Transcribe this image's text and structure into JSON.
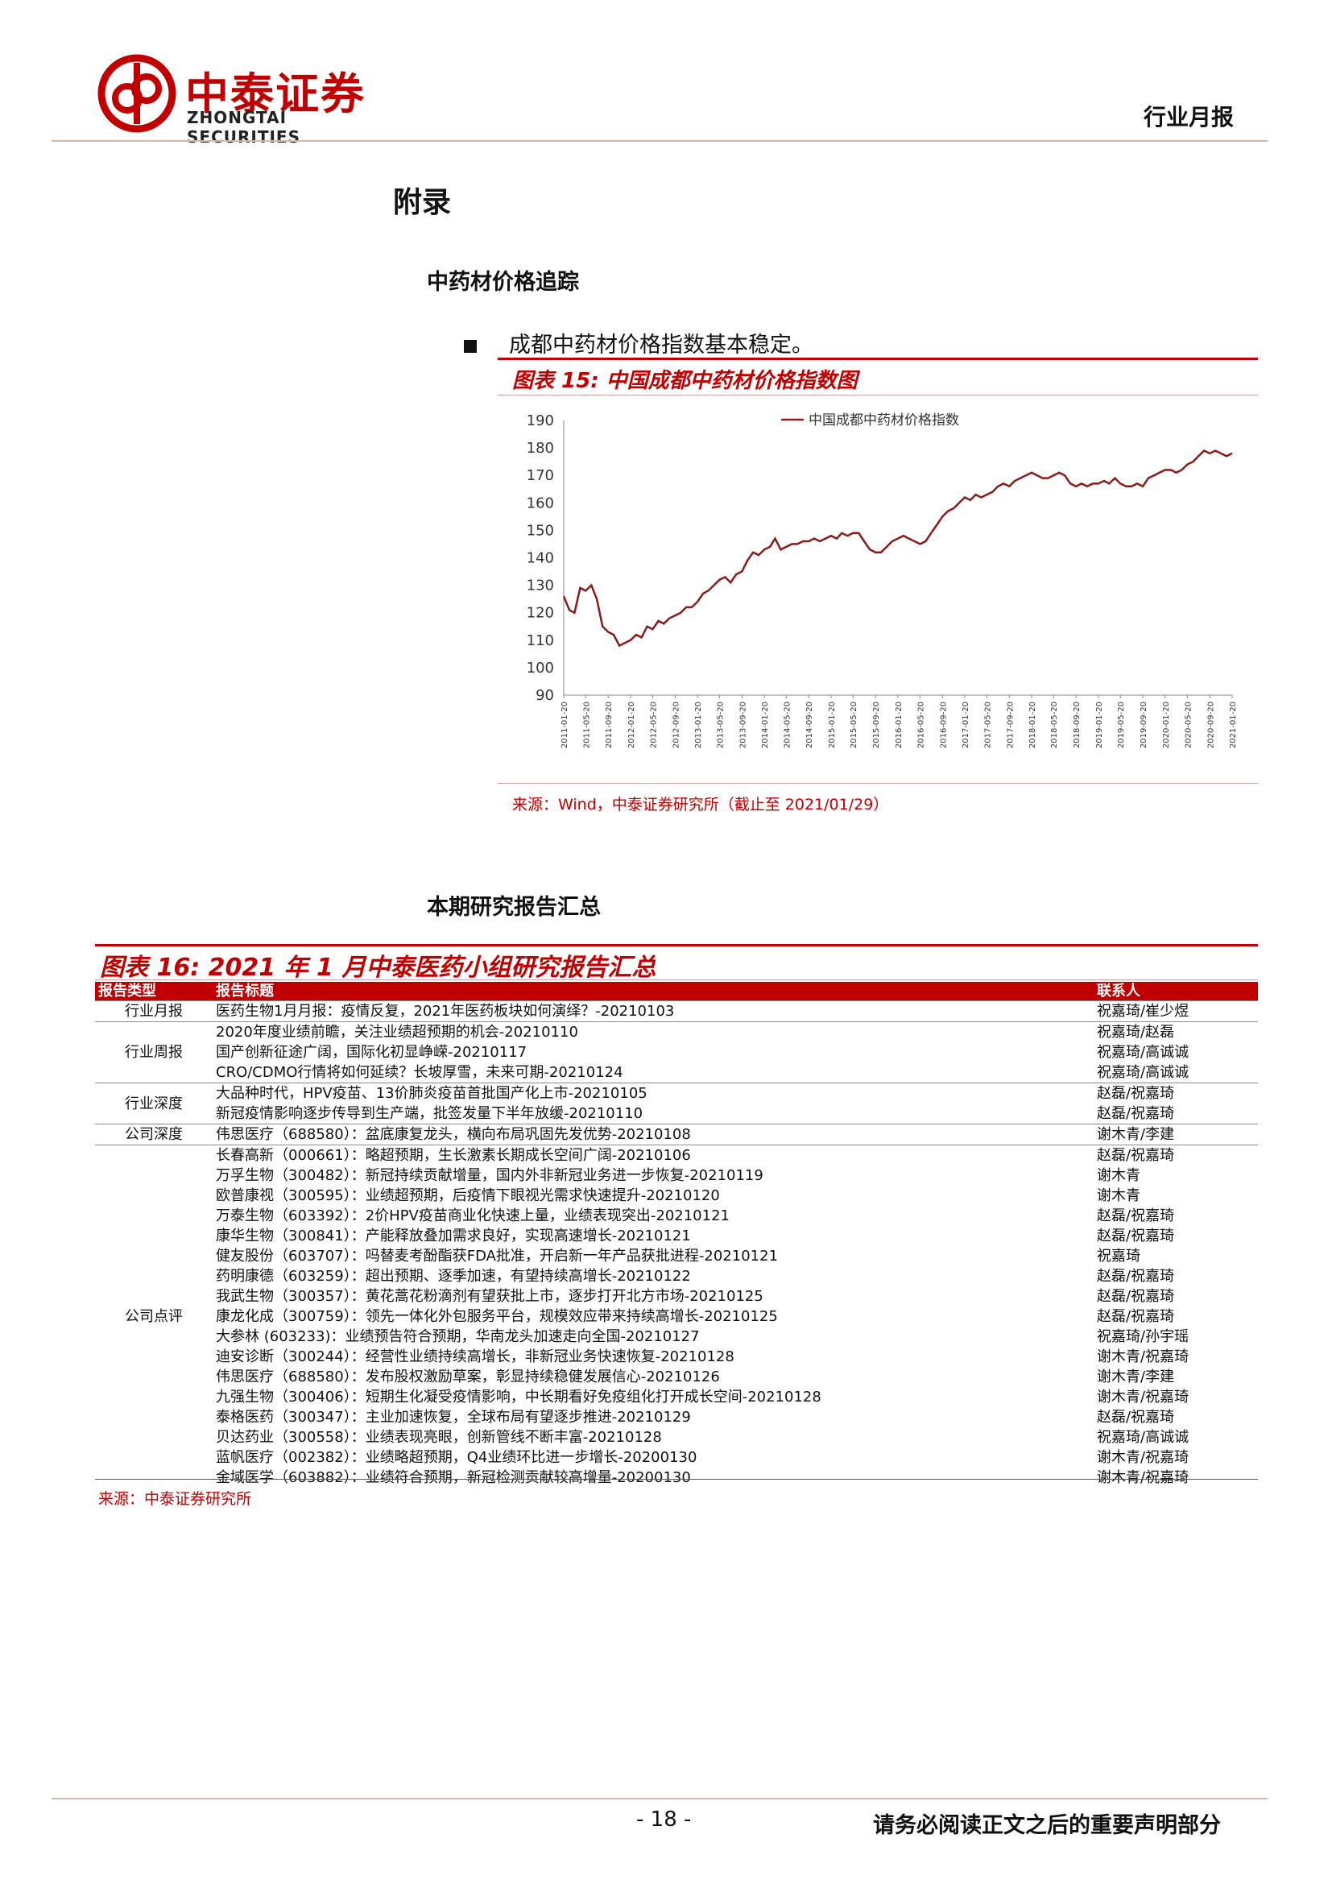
{
  "header": {
    "logo_cn": "中泰证券",
    "logo_en": "ZHONGTAI SECURITIES",
    "doc_type": "行业月报"
  },
  "appendix_title": "附录",
  "section1_title": "中药材价格追踪",
  "bullet_text": "成都中药材价格指数基本稳定。",
  "figure15": {
    "title": "图表 15:  中国成都中药材价格指数图",
    "source": "来源：Wind，中泰证券研究所（截止至 2021/01/29）"
  },
  "chart_data": {
    "type": "line",
    "title": "",
    "xlabel": "",
    "ylabel": "",
    "ylim": [
      90,
      190
    ],
    "yticks": [
      90,
      100,
      110,
      120,
      130,
      140,
      150,
      160,
      170,
      180,
      190
    ],
    "legend_position": "top",
    "grid": false,
    "x_ticks": [
      "2011-01-20",
      "2011-05-20",
      "2011-09-20",
      "2012-01-20",
      "2012-05-20",
      "2012-09-20",
      "2013-01-20",
      "2013-05-20",
      "2013-09-20",
      "2014-01-20",
      "2014-05-20",
      "2014-09-20",
      "2015-01-20",
      "2015-05-20",
      "2015-09-20",
      "2016-01-20",
      "2016-05-20",
      "2016-09-20",
      "2017-01-20",
      "2017-05-20",
      "2017-09-20",
      "2018-01-20",
      "2018-05-20",
      "2018-09-20",
      "2019-01-20",
      "2019-05-20",
      "2019-09-20",
      "2020-01-20",
      "2020-05-20",
      "2020-09-20",
      "2021-01-20"
    ],
    "series": [
      {
        "name": "中国成都中药材价格指数",
        "color": "#8b1a1a",
        "points": [
          [
            "2011-01-20",
            126
          ],
          [
            "2011-02-20",
            121
          ],
          [
            "2011-03-20",
            120
          ],
          [
            "2011-04-20",
            129
          ],
          [
            "2011-05-20",
            128
          ],
          [
            "2011-06-20",
            130
          ],
          [
            "2011-07-20",
            125
          ],
          [
            "2011-08-20",
            115
          ],
          [
            "2011-09-20",
            113
          ],
          [
            "2011-10-20",
            112
          ],
          [
            "2011-11-20",
            108
          ],
          [
            "2011-12-20",
            109
          ],
          [
            "2012-01-20",
            110
          ],
          [
            "2012-02-20",
            112
          ],
          [
            "2012-03-20",
            111
          ],
          [
            "2012-04-20",
            115
          ],
          [
            "2012-05-20",
            114
          ],
          [
            "2012-06-20",
            117
          ],
          [
            "2012-07-20",
            116
          ],
          [
            "2012-08-20",
            118
          ],
          [
            "2012-09-20",
            119
          ],
          [
            "2012-10-20",
            120
          ],
          [
            "2012-11-20",
            122
          ],
          [
            "2012-12-20",
            122
          ],
          [
            "2013-01-20",
            124
          ],
          [
            "2013-02-20",
            127
          ],
          [
            "2013-03-20",
            128
          ],
          [
            "2013-04-20",
            130
          ],
          [
            "2013-05-20",
            132
          ],
          [
            "2013-06-20",
            133
          ],
          [
            "2013-07-20",
            131
          ],
          [
            "2013-08-20",
            134
          ],
          [
            "2013-09-20",
            135
          ],
          [
            "2013-10-20",
            139
          ],
          [
            "2013-11-20",
            142
          ],
          [
            "2013-12-20",
            141
          ],
          [
            "2014-01-20",
            143
          ],
          [
            "2014-02-20",
            144
          ],
          [
            "2014-03-20",
            147
          ],
          [
            "2014-04-20",
            143
          ],
          [
            "2014-05-20",
            144
          ],
          [
            "2014-06-20",
            145
          ],
          [
            "2014-07-20",
            145
          ],
          [
            "2014-08-20",
            146
          ],
          [
            "2014-09-20",
            146
          ],
          [
            "2014-10-20",
            147
          ],
          [
            "2014-11-20",
            146
          ],
          [
            "2014-12-20",
            147
          ],
          [
            "2015-01-20",
            148
          ],
          [
            "2015-02-20",
            147
          ],
          [
            "2015-03-20",
            149
          ],
          [
            "2015-04-20",
            148
          ],
          [
            "2015-05-20",
            149
          ],
          [
            "2015-06-20",
            149
          ],
          [
            "2015-07-20",
            146
          ],
          [
            "2015-08-20",
            143
          ],
          [
            "2015-09-20",
            142
          ],
          [
            "2015-10-20",
            142
          ],
          [
            "2015-11-20",
            144
          ],
          [
            "2015-12-20",
            146
          ],
          [
            "2016-01-20",
            147
          ],
          [
            "2016-02-20",
            148
          ],
          [
            "2016-03-20",
            147
          ],
          [
            "2016-04-20",
            146
          ],
          [
            "2016-05-20",
            145
          ],
          [
            "2016-06-20",
            146
          ],
          [
            "2016-07-20",
            149
          ],
          [
            "2016-08-20",
            152
          ],
          [
            "2016-09-20",
            155
          ],
          [
            "2016-10-20",
            157
          ],
          [
            "2016-11-20",
            158
          ],
          [
            "2016-12-20",
            160
          ],
          [
            "2017-01-20",
            162
          ],
          [
            "2017-02-20",
            161
          ],
          [
            "2017-03-20",
            163
          ],
          [
            "2017-04-20",
            162
          ],
          [
            "2017-05-20",
            163
          ],
          [
            "2017-06-20",
            164
          ],
          [
            "2017-07-20",
            166
          ],
          [
            "2017-08-20",
            167
          ],
          [
            "2017-09-20",
            166
          ],
          [
            "2017-10-20",
            168
          ],
          [
            "2017-11-20",
            169
          ],
          [
            "2017-12-20",
            170
          ],
          [
            "2018-01-20",
            171
          ],
          [
            "2018-02-20",
            170
          ],
          [
            "2018-03-20",
            169
          ],
          [
            "2018-04-20",
            169
          ],
          [
            "2018-05-20",
            170
          ],
          [
            "2018-06-20",
            171
          ],
          [
            "2018-07-20",
            170
          ],
          [
            "2018-08-20",
            167
          ],
          [
            "2018-09-20",
            166
          ],
          [
            "2018-10-20",
            167
          ],
          [
            "2018-11-20",
            166
          ],
          [
            "2018-12-20",
            167
          ],
          [
            "2019-01-20",
            167
          ],
          [
            "2019-02-20",
            168
          ],
          [
            "2019-03-20",
            167
          ],
          [
            "2019-04-20",
            169
          ],
          [
            "2019-05-20",
            167
          ],
          [
            "2019-06-20",
            166
          ],
          [
            "2019-07-20",
            166
          ],
          [
            "2019-08-20",
            167
          ],
          [
            "2019-09-20",
            166
          ],
          [
            "2019-10-20",
            169
          ],
          [
            "2019-11-20",
            170
          ],
          [
            "2019-12-20",
            171
          ],
          [
            "2020-01-20",
            172
          ],
          [
            "2020-02-20",
            172
          ],
          [
            "2020-03-20",
            171
          ],
          [
            "2020-04-20",
            172
          ],
          [
            "2020-05-20",
            174
          ],
          [
            "2020-06-20",
            175
          ],
          [
            "2020-07-20",
            177
          ],
          [
            "2020-08-20",
            179
          ],
          [
            "2020-09-20",
            178
          ],
          [
            "2020-10-20",
            179
          ],
          [
            "2020-11-20",
            178
          ],
          [
            "2020-12-20",
            177
          ],
          [
            "2021-01-20",
            178
          ]
        ]
      }
    ]
  },
  "section2_title": "本期研究报告汇总",
  "figure16": {
    "title": "图表 16:  2021 年 1 月中泰医药小组研究报告汇总",
    "source": "来源：中泰证券研究所",
    "headers": {
      "type": "报告类型",
      "title": "报告标题",
      "contact": "联系人"
    },
    "groups": [
      {
        "type": "行业月报",
        "rows": [
          {
            "title": "医药生物1月月报：疫情反复，2021年医药板块如何演绎？-20210103",
            "contact": "祝嘉琦/崔少煜"
          }
        ]
      },
      {
        "type": "行业周报",
        "rows": [
          {
            "title": "2020年度业绩前瞻，关注业绩超预期的机会-20210110",
            "contact": "祝嘉琦/赵磊"
          },
          {
            "title": "国产创新征途广阔，国际化初显峥嵘-20210117",
            "contact": "祝嘉琦/高诚诚"
          },
          {
            "title": "CRO/CDMO行情将如何延续？长坡厚雪，未来可期-20210124",
            "contact": "祝嘉琦/高诚诚"
          }
        ]
      },
      {
        "type": "行业深度",
        "rows": [
          {
            "title": "大品种时代，HPV疫苗、13价肺炎疫苗首批国产化上市-20210105",
            "contact": "赵磊/祝嘉琦"
          },
          {
            "title": "新冠疫情影响逐步传导到生产端，批签发量下半年放缓-20210110",
            "contact": "赵磊/祝嘉琦"
          }
        ]
      },
      {
        "type": "公司深度",
        "rows": [
          {
            "title": "伟思医疗（688580）：盆底康复龙头，横向布局巩固先发优势-20210108",
            "contact": "谢木青/李建"
          }
        ]
      },
      {
        "type": "公司点评",
        "rows": [
          {
            "title": "长春高新（000661）：略超预期，生长激素长期成长空间广阔-20210106",
            "contact": "赵磊/祝嘉琦"
          },
          {
            "title": "万孚生物（300482）：新冠持续贡献增量，国内外非新冠业务进一步恢复-20210119",
            "contact": "谢木青"
          },
          {
            "title": "欧普康视（300595）：业绩超预期，后疫情下眼视光需求快速提升-20210120",
            "contact": "谢木青"
          },
          {
            "title": "万泰生物（603392）：2价HPV疫苗商业化快速上量，业绩表现突出-20210121",
            "contact": "赵磊/祝嘉琦"
          },
          {
            "title": "康华生物（300841）：产能释放叠加需求良好，实现高速增长-20210121",
            "contact": "赵磊/祝嘉琦"
          },
          {
            "title": "健友股份（603707）：吗替麦考酚酯获FDA批准，开启新一年产品获批进程-20210121",
            "contact": "祝嘉琦"
          },
          {
            "title": "药明康德（603259）：超出预期、逐季加速，有望持续高增长-20210122",
            "contact": "赵磊/祝嘉琦"
          },
          {
            "title": "我武生物（300357）：黄花蒿花粉滴剂有望获批上市，逐步打开北方市场-20210125",
            "contact": "赵磊/祝嘉琦"
          },
          {
            "title": "康龙化成（300759）：领先一体化外包服务平台，规模效应带来持续高增长-20210125",
            "contact": "赵磊/祝嘉琦"
          },
          {
            "title": "大参林  (603233)：业绩预告符合预期，华南龙头加速走向全国-20210127",
            "contact": "祝嘉琦/孙宇瑶"
          },
          {
            "title": "迪安诊断（300244）：经营性业绩持续高增长，非新冠业务快速恢复-20210128",
            "contact": "谢木青/祝嘉琦"
          },
          {
            "title": "伟思医疗（688580）：发布股权激励草案，彰显持续稳健发展信心-20210126",
            "contact": "谢木青/李建"
          },
          {
            "title": "九强生物（300406）：短期生化凝受疫情影响，中长期看好免疫组化打开成长空间-20210128",
            "contact": "谢木青/祝嘉琦"
          },
          {
            "title": "泰格医药（300347）：主业加速恢复，全球布局有望逐步推进-20210129",
            "contact": "赵磊/祝嘉琦"
          },
          {
            "title": "贝达药业（300558）：业绩表现亮眼，创新管线不断丰富-20210128",
            "contact": "祝嘉琦/高诚诚"
          },
          {
            "title": "蓝帆医疗（002382）：业绩略超预期，Q4业绩环比进一步增长-20200130",
            "contact": "谢木青/祝嘉琦"
          },
          {
            "title": "金域医学（603882）：业绩符合预期，新冠检测贡献较高增量-20200130",
            "contact": "谢木青/祝嘉琦"
          }
        ]
      }
    ]
  },
  "footer": {
    "page_number": "- 18 -",
    "disclaimer": "请务必阅读正文之后的重要声明部分"
  }
}
